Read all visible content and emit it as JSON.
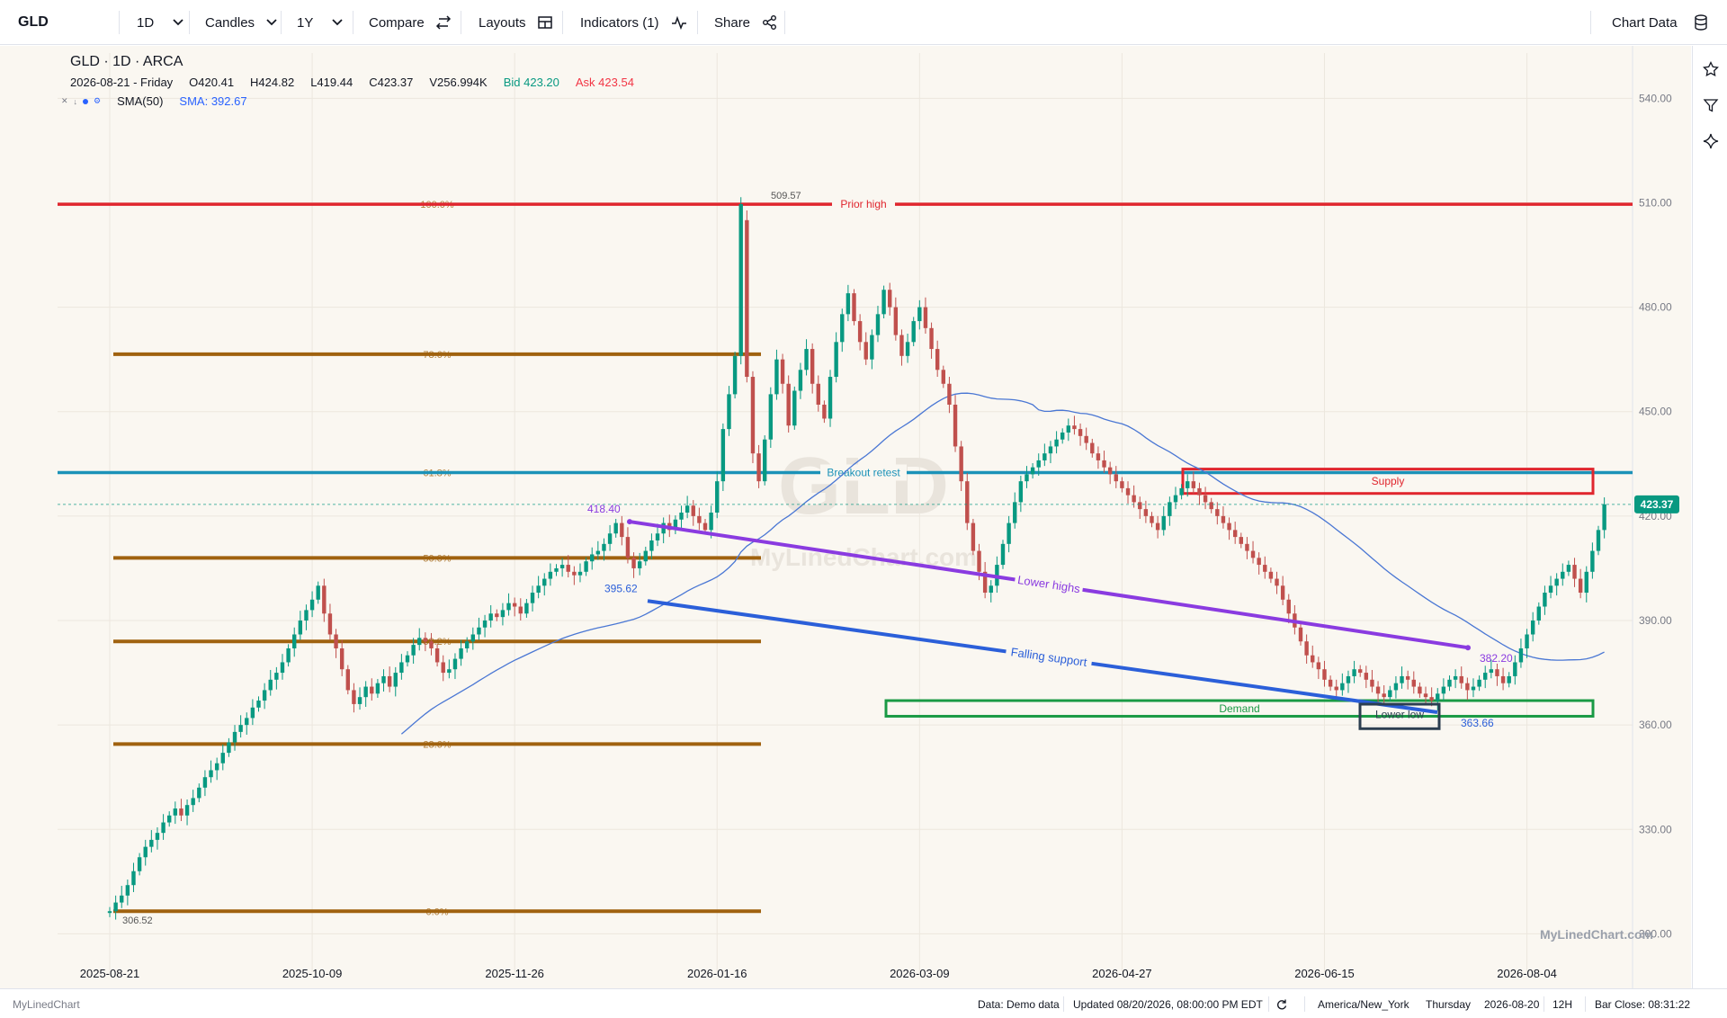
{
  "toolbar": {
    "symbol": "GLD",
    "interval": "1D",
    "chart_type": "Candles",
    "range": "1Y",
    "compare": "Compare",
    "layouts": "Layouts",
    "indicators": "Indicators (1)",
    "share": "Share",
    "chart_data_btn": "Chart Data"
  },
  "legend": {
    "title": "GLD · 1D · ARCA",
    "date": "2026-08-21 - Friday",
    "open": "O420.41",
    "high": "H424.82",
    "low": "L419.44",
    "close": "C423.37",
    "volume": "V256.994K",
    "bid": "Bid 423.20",
    "ask": "Ask 423.54",
    "sma_name": "SMA(50)",
    "sma_value": "SMA: 392.67"
  },
  "colors": {
    "up": "#089981",
    "down": "#c0504d",
    "fib": "#a0620f",
    "prior_high": "#e0262e",
    "breakout": "#1b92b8",
    "lower_highs": "#8a3be0",
    "falling_support": "#2b5fd9",
    "demand": "#1a9a45",
    "supply": "#e0262e",
    "lower_low": "#2c3e50",
    "sma": "#4a77d4",
    "current_price": "#089981"
  },
  "chart_data": {
    "type": "candlestick",
    "watermark_symbol": "GLD",
    "watermark_brand": "MyLinedChart.com",
    "corner_brand": "MyLinedChart.com",
    "y_ticks": [
      "540.00",
      "510.00",
      "480.00",
      "450.00",
      "420.00",
      "390.00",
      "360.00",
      "330.00",
      "300.00"
    ],
    "y_tick_values": [
      540,
      510,
      480,
      450,
      420,
      390,
      360,
      330,
      300
    ],
    "ylim": [
      289,
      553
    ],
    "x_ticks": [
      "2025-08-21",
      "2025-10-09",
      "2025-11-26",
      "2026-01-16",
      "2026-03-09",
      "2026-04-27",
      "2026-06-15",
      "2026-08-04"
    ],
    "x_tick_index": [
      0,
      34,
      68,
      102,
      136,
      170,
      204,
      238
    ],
    "current_price": "423.37",
    "current_price_value": 423.37,
    "candles_close": [
      306.5,
      309,
      311,
      314,
      318,
      322,
      325,
      327,
      329,
      332,
      334,
      336,
      334,
      337,
      339,
      342,
      345,
      347,
      349,
      352,
      355,
      358,
      360,
      362,
      365,
      367,
      370,
      373,
      375,
      378,
      382,
      386,
      390,
      393,
      396,
      400,
      392,
      386,
      382,
      376,
      370,
      366,
      368,
      371,
      369,
      372,
      374,
      371,
      375,
      378,
      380,
      383,
      385,
      384,
      382,
      378,
      375,
      376,
      379,
      382,
      384,
      386,
      388,
      390,
      392,
      391,
      393,
      395,
      394,
      392,
      395,
      398,
      400,
      402,
      404,
      405,
      406,
      404,
      403,
      404,
      407,
      409,
      410,
      412,
      415,
      418,
      414,
      408,
      405,
      407,
      410,
      413,
      415,
      418,
      416,
      419,
      421,
      423,
      420,
      418,
      416,
      421,
      430,
      445,
      455,
      466,
      509.6,
      460,
      438,
      430,
      442,
      455,
      465,
      458,
      446,
      456,
      462,
      468,
      458,
      452,
      448,
      460,
      470,
      478,
      484,
      476,
      470,
      465,
      472,
      478,
      485,
      480,
      472,
      466,
      470,
      476,
      480,
      474,
      468,
      462,
      458,
      452,
      440,
      430,
      418,
      410,
      404,
      398,
      400,
      406,
      412,
      418,
      424,
      430,
      432,
      434,
      436,
      438,
      440,
      442,
      444,
      446,
      445,
      443,
      441,
      438,
      436,
      434,
      432,
      430,
      428,
      426,
      424,
      422,
      420,
      418,
      416,
      420,
      424,
      426,
      428,
      430,
      428,
      426,
      424,
      422,
      420,
      418,
      416,
      414,
      412,
      410,
      408,
      406,
      404,
      402,
      400,
      396,
      392,
      388,
      384,
      380,
      378,
      376,
      373,
      371,
      370,
      372,
      374,
      376,
      375,
      373,
      371,
      369,
      368,
      370,
      372,
      374,
      373,
      371,
      369,
      368,
      367,
      369,
      371,
      373,
      374,
      372,
      370,
      371,
      373,
      375,
      376,
      374,
      372,
      374,
      378,
      382,
      386,
      390,
      394,
      398,
      400,
      402,
      404,
      406,
      402,
      398,
      404,
      410,
      416,
      423.37
    ],
    "candles_open": [
      306,
      306.5,
      309,
      311,
      314,
      318,
      322,
      325,
      327,
      329,
      332,
      334,
      336,
      334,
      337,
      339,
      342,
      345,
      347,
      349,
      352,
      355,
      358,
      360,
      362,
      365,
      367,
      370,
      373,
      375,
      378,
      382,
      386,
      390,
      393,
      396,
      400,
      392,
      386,
      382,
      376,
      370,
      366,
      368,
      371,
      369,
      372,
      374,
      371,
      375,
      378,
      380,
      383,
      385,
      384,
      382,
      378,
      375,
      376,
      379,
      382,
      384,
      386,
      388,
      390,
      392,
      391,
      393,
      395,
      394,
      392,
      395,
      398,
      400,
      402,
      404,
      405,
      406,
      404,
      403,
      404,
      407,
      409,
      410,
      412,
      415,
      418,
      414,
      408,
      405,
      407,
      410,
      413,
      415,
      418,
      416,
      419,
      421,
      423,
      420,
      418,
      416,
      421,
      430,
      445,
      455,
      466,
      505,
      460,
      438,
      430,
      442,
      455,
      465,
      458,
      446,
      456,
      462,
      468,
      458,
      452,
      448,
      460,
      470,
      478,
      484,
      476,
      470,
      465,
      472,
      478,
      485,
      480,
      472,
      466,
      470,
      476,
      480,
      474,
      468,
      462,
      458,
      452,
      440,
      430,
      418,
      410,
      404,
      398,
      400,
      406,
      412,
      418,
      424,
      430,
      432,
      434,
      436,
      438,
      440,
      442,
      444,
      446,
      445,
      443,
      441,
      438,
      436,
      434,
      432,
      430,
      428,
      426,
      424,
      422,
      420,
      418,
      416,
      420,
      424,
      426,
      428,
      430,
      428,
      426,
      424,
      422,
      420,
      418,
      416,
      414,
      412,
      410,
      408,
      406,
      404,
      402,
      400,
      396,
      392,
      388,
      384,
      380,
      378,
      376,
      373,
      371,
      370,
      372,
      374,
      376,
      375,
      373,
      371,
      369,
      368,
      370,
      372,
      374,
      373,
      371,
      369,
      368,
      367,
      369,
      371,
      373,
      374,
      372,
      370,
      371,
      373,
      375,
      376,
      374,
      372,
      374,
      378,
      382,
      386,
      390,
      394,
      398,
      400,
      402,
      404,
      406,
      402,
      398,
      404,
      410,
      416,
      420.41
    ],
    "annotations": {
      "high_label": "509.57",
      "low_label": "306.52",
      "lh_start": "418.40",
      "fs_start": "395.62",
      "lh_end": "382.20",
      "fs_end": "363.66",
      "prior_high": "Prior high",
      "breakout": "Breakout retest",
      "supply": "Supply",
      "demand": "Demand",
      "lower_highs": "Lower highs",
      "falling_support": "Falling support",
      "lower_low": "Lower low",
      "fib_100": "100.0%",
      "fib_786": "78.6%",
      "fib_618": "61.8%",
      "fib_50": "50.0%",
      "fib_382": "38.2%",
      "fib_236": "23.6%",
      "fib_0": "0.0%"
    },
    "levels": {
      "prior_high": 509.57,
      "breakout": 432.5,
      "fib_786": 466.5,
      "fib_50": 408,
      "fib_382": 384,
      "fib_236": 354.5,
      "fib_0": 306.5,
      "supply_top": 433.5,
      "supply_bottom": 426.5,
      "demand_top": 367,
      "demand_bottom": 362.5,
      "lowlow_top": 367,
      "lowlow_bottom": 361,
      "lh_y1": 418.4,
      "lh_y2": 382.2,
      "fs_y1": 395.62,
      "fs_y2": 363.66
    }
  },
  "status": {
    "brand": "MyLinedChart",
    "data_source": "Data: Demo data",
    "updated": "Updated 08/20/2026, 08:00:00 PM EDT",
    "timezone": "America/New_York",
    "weekday": "Thursday",
    "date": "2026-08-20",
    "hours": "12H",
    "bar_close": "Bar Close: 08:31:22"
  }
}
